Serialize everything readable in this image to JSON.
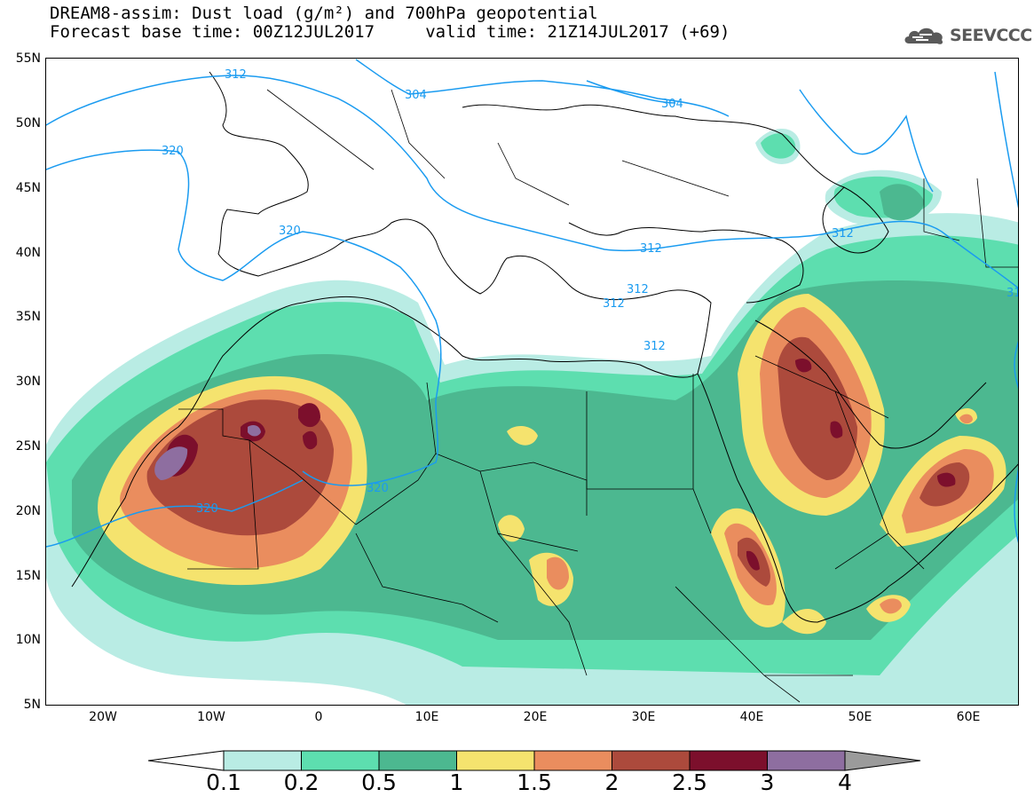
{
  "header": {
    "title_line1": "DREAM8-assim: Dust load (g/m²) and 700hPa geopotential",
    "title_line2": "Forecast base time: 00Z12JUL2017     valid time: 21Z14JUL2017 (+69)"
  },
  "logo": {
    "text": "SEEVCCC",
    "icon": "cloud-icon"
  },
  "axes": {
    "lat_labels": [
      "55N",
      "50N",
      "45N",
      "40N",
      "35N",
      "30N",
      "25N",
      "20N",
      "15N",
      "10N",
      "5N"
    ],
    "lon_labels": [
      "20W",
      "10W",
      "0",
      "10E",
      "20E",
      "30E",
      "40E",
      "50E",
      "60E"
    ]
  },
  "contours": {
    "labels": [
      "312",
      "304",
      "304",
      "320",
      "320",
      "320",
      "320",
      "312",
      "312",
      "312",
      "312",
      "312",
      "31"
    ]
  },
  "colorbar": {
    "levels": [
      "0.1",
      "0.2",
      "0.5",
      "1",
      "1.5",
      "2",
      "2.5",
      "3",
      "4"
    ],
    "colors": [
      "#ffffff",
      "#b9ece4",
      "#5ddeaf",
      "#4cb890",
      "#f5e36e",
      "#ea8d5e",
      "#ac4a3c",
      "#7c0f2c",
      "#8e6ea0",
      "#9b9b9b"
    ]
  }
}
